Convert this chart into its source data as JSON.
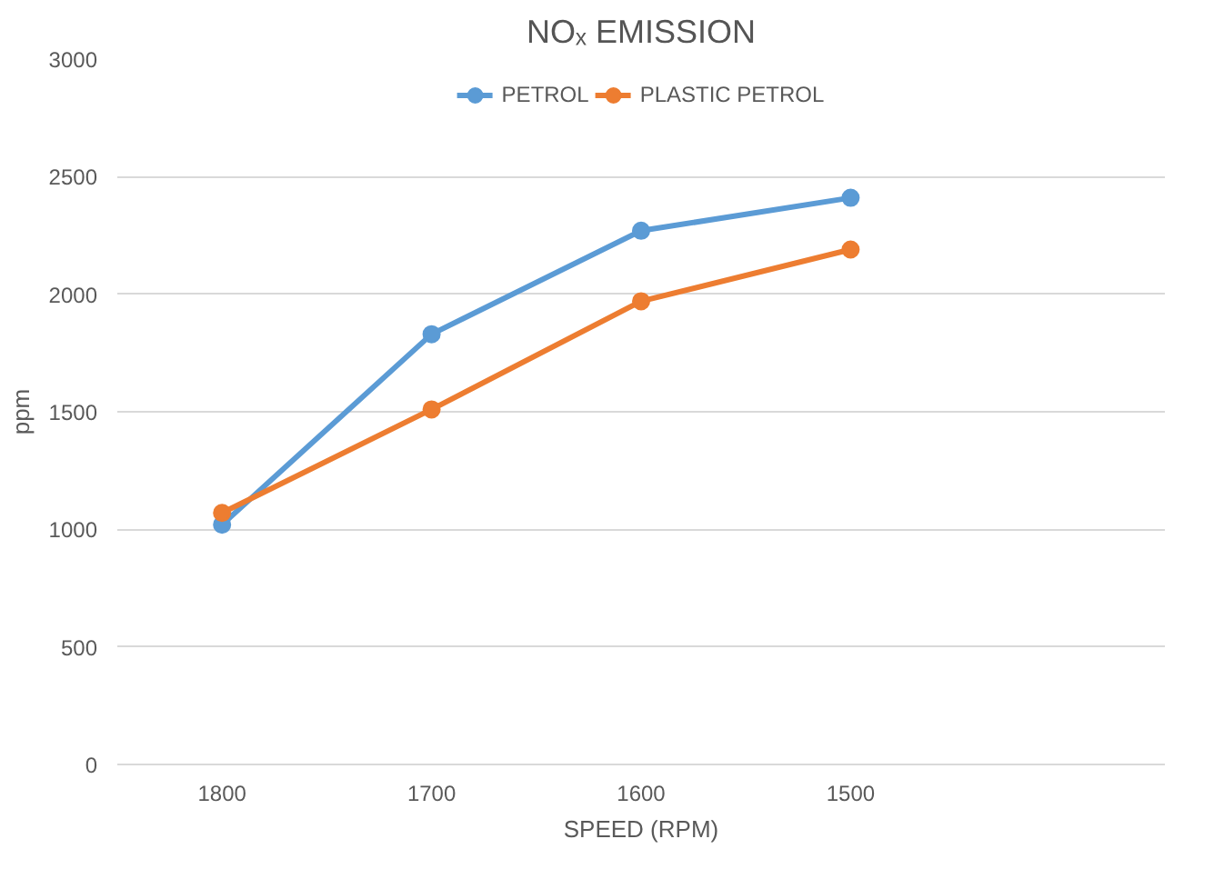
{
  "chart_data": {
    "type": "line",
    "title": "NOₓ EMISSION",
    "xlabel": "SPEED (RPM)",
    "ylabel": "ppm",
    "categories": [
      "1800",
      "1700",
      "1600",
      "1500",
      null
    ],
    "series": [
      {
        "name": "PETROL",
        "color": "#5b9bd5",
        "values": [
          1020,
          1830,
          2270,
          2410,
          null
        ]
      },
      {
        "name": "PLASTIC PETROL",
        "color": "#ed7d31",
        "values": [
          1070,
          1510,
          1970,
          2190,
          null
        ]
      }
    ],
    "ylim": [
      0,
      3000
    ],
    "yticks": [
      0,
      500,
      1000,
      1500,
      2000,
      2500,
      3000
    ],
    "grid": "y",
    "legend": "top",
    "marker": "circle",
    "line_style": "solid"
  }
}
